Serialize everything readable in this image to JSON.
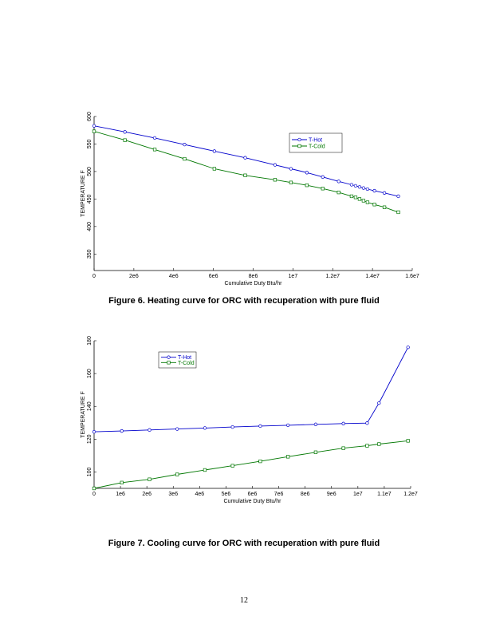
{
  "page": {
    "number": "12"
  },
  "captions": [
    "Figure 6.  Heating curve for ORC with recuperation with pure fluid",
    "Figure 7.  Cooling curve for ORC with recuperation with pure fluid"
  ],
  "colors": {
    "hot": "#0000cc",
    "cold": "#007700"
  },
  "chart_data": [
    {
      "type": "line",
      "xlabel": "Cumulative Duty  Btu/hr",
      "ylabel": "TEMPERATURE F",
      "xlim": [
        0,
        16000000
      ],
      "ylim": [
        320,
        600
      ],
      "xticks": [
        0,
        2000000,
        4000000,
        6000000,
        8000000,
        10000000,
        12000000,
        14000000,
        16000000
      ],
      "xtick_labels": [
        "0",
        "2e6",
        "4e6",
        "6e6",
        "8e6",
        "1e7",
        "1.2e7",
        "1.4e7",
        "1.6e7"
      ],
      "yticks": [
        350,
        400,
        450,
        500,
        550,
        600
      ],
      "ytick_labels": [
        "350",
        "400",
        "450",
        "500",
        "550",
        "600"
      ],
      "legend_position": "top-right",
      "grid": false,
      "series": [
        {
          "name": "T-Hot",
          "marker": "circle",
          "x": [
            0,
            1550000,
            3050000,
            4550000,
            6050000,
            7600000,
            9100000,
            9900000,
            10700000,
            11500000,
            12300000,
            12950000,
            13150000,
            13350000,
            13550000,
            13750000,
            14100000,
            14600000,
            15300000
          ],
          "y": [
            583,
            572,
            561,
            549,
            537,
            525,
            512,
            505,
            498,
            490,
            482,
            476,
            474,
            472,
            470,
            468,
            465,
            461,
            455
          ]
        },
        {
          "name": "T-Cold",
          "marker": "square",
          "x": [
            0,
            1550000,
            3050000,
            4550000,
            6050000,
            7600000,
            9100000,
            9900000,
            10700000,
            11500000,
            12300000,
            12950000,
            13150000,
            13350000,
            13550000,
            13750000,
            14100000,
            14600000,
            15300000
          ],
          "y": [
            573,
            557,
            540,
            523,
            505,
            493,
            485,
            480,
            475,
            469,
            462,
            455,
            453,
            450,
            447,
            444,
            440,
            435,
            426
          ]
        }
      ]
    },
    {
      "type": "line",
      "xlabel": "Cumulative Duty  Btu/hr",
      "ylabel": "TEMPERATURE F",
      "xlim": [
        0,
        12000000
      ],
      "ylim": [
        90,
        180
      ],
      "xticks": [
        0,
        1000000,
        2000000,
        3000000,
        4000000,
        5000000,
        6000000,
        7000000,
        8000000,
        9000000,
        10000000,
        11000000,
        12000000
      ],
      "xtick_labels": [
        "0",
        "1e6",
        "2e6",
        "3e6",
        "4e6",
        "5e6",
        "6e6",
        "7e6",
        "8e6",
        "9e6",
        "1e7",
        "1.1e7",
        "1.2e7"
      ],
      "yticks": [
        100,
        120,
        140,
        160,
        180
      ],
      "ytick_labels": [
        "100",
        "120",
        "140",
        "160",
        "180"
      ],
      "legend_position": "top-center",
      "grid": false,
      "series": [
        {
          "name": "T-Hot",
          "marker": "circle",
          "x": [
            0,
            1050000,
            2100000,
            3150000,
            4200000,
            5250000,
            6300000,
            7350000,
            8400000,
            9450000,
            10350000,
            10800000,
            11900000
          ],
          "y": [
            124.5,
            125,
            125.6,
            126.2,
            126.8,
            127.4,
            128,
            128.5,
            129,
            129.5,
            129.8,
            142,
            176
          ]
        },
        {
          "name": "T-Cold",
          "marker": "square",
          "x": [
            0,
            1050000,
            2100000,
            3150000,
            4200000,
            5250000,
            6300000,
            7350000,
            8400000,
            9450000,
            10350000,
            10800000,
            11900000
          ],
          "y": [
            90,
            93.5,
            95.5,
            98.5,
            101.2,
            103.8,
            106.5,
            109.3,
            112,
            114.5,
            116,
            117,
            119
          ]
        }
      ]
    }
  ]
}
